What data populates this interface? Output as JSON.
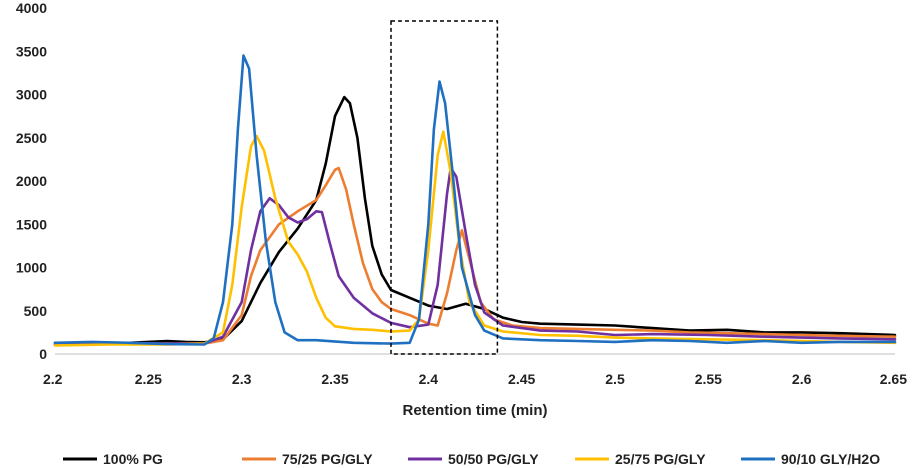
{
  "chart_data": {
    "type": "line",
    "title": "",
    "xlabel": "Retention time (min)",
    "ylabel": "",
    "xlim": [
      2.2,
      2.65
    ],
    "ylim": [
      0,
      4000
    ],
    "x_ticks": [
      "2.2",
      "2.25",
      "2.3",
      "2.35",
      "2.4",
      "2.45",
      "2.5",
      "2.55",
      "2.6",
      "2.65"
    ],
    "y_ticks": [
      "0",
      "500",
      "1000",
      "1500",
      "2000",
      "2500",
      "3000",
      "3500",
      "4000"
    ],
    "highlight_region": {
      "x": [
        2.38,
        2.437
      ],
      "y": [
        0,
        3850
      ]
    },
    "legend_position": "bottom",
    "series": [
      {
        "name": "100% PG",
        "color": "#000000",
        "points": [
          [
            2.2,
            130
          ],
          [
            2.22,
            120
          ],
          [
            2.24,
            130
          ],
          [
            2.26,
            150
          ],
          [
            2.27,
            140
          ],
          [
            2.28,
            135
          ],
          [
            2.29,
            170
          ],
          [
            2.3,
            380
          ],
          [
            2.31,
            820
          ],
          [
            2.32,
            1180
          ],
          [
            2.33,
            1450
          ],
          [
            2.34,
            1780
          ],
          [
            2.345,
            2200
          ],
          [
            2.35,
            2750
          ],
          [
            2.355,
            2970
          ],
          [
            2.358,
            2900
          ],
          [
            2.362,
            2500
          ],
          [
            2.366,
            1800
          ],
          [
            2.37,
            1250
          ],
          [
            2.375,
            920
          ],
          [
            2.38,
            740
          ],
          [
            2.39,
            650
          ],
          [
            2.4,
            560
          ],
          [
            2.41,
            520
          ],
          [
            2.42,
            580
          ],
          [
            2.43,
            520
          ],
          [
            2.44,
            420
          ],
          [
            2.45,
            370
          ],
          [
            2.46,
            350
          ],
          [
            2.48,
            340
          ],
          [
            2.5,
            330
          ],
          [
            2.52,
            300
          ],
          [
            2.54,
            270
          ],
          [
            2.56,
            280
          ],
          [
            2.58,
            250
          ],
          [
            2.6,
            250
          ],
          [
            2.62,
            240
          ],
          [
            2.65,
            220
          ]
        ]
      },
      {
        "name": "75/25 PG/GLY",
        "color": "#ED7D31",
        "points": [
          [
            2.2,
            110
          ],
          [
            2.23,
            120
          ],
          [
            2.26,
            120
          ],
          [
            2.28,
            120
          ],
          [
            2.29,
            160
          ],
          [
            2.3,
            450
          ],
          [
            2.305,
            900
          ],
          [
            2.31,
            1200
          ],
          [
            2.32,
            1500
          ],
          [
            2.33,
            1650
          ],
          [
            2.34,
            1780
          ],
          [
            2.345,
            1950
          ],
          [
            2.35,
            2130
          ],
          [
            2.352,
            2150
          ],
          [
            2.356,
            1900
          ],
          [
            2.36,
            1500
          ],
          [
            2.365,
            1050
          ],
          [
            2.37,
            750
          ],
          [
            2.375,
            600
          ],
          [
            2.38,
            520
          ],
          [
            2.39,
            450
          ],
          [
            2.4,
            350
          ],
          [
            2.405,
            330
          ],
          [
            2.41,
            700
          ],
          [
            2.415,
            1200
          ],
          [
            2.418,
            1430
          ],
          [
            2.422,
            1100
          ],
          [
            2.428,
            600
          ],
          [
            2.435,
            400
          ],
          [
            2.445,
            330
          ],
          [
            2.46,
            300
          ],
          [
            2.48,
            290
          ],
          [
            2.5,
            280
          ],
          [
            2.52,
            270
          ],
          [
            2.54,
            250
          ],
          [
            2.56,
            240
          ],
          [
            2.58,
            230
          ],
          [
            2.6,
            220
          ],
          [
            2.62,
            210
          ],
          [
            2.65,
            200
          ]
        ]
      },
      {
        "name": "50/50 PG/GLY",
        "color": "#7030A0",
        "points": [
          [
            2.2,
            110
          ],
          [
            2.23,
            130
          ],
          [
            2.26,
            120
          ],
          [
            2.28,
            120
          ],
          [
            2.29,
            200
          ],
          [
            2.3,
            600
          ],
          [
            2.305,
            1200
          ],
          [
            2.31,
            1650
          ],
          [
            2.315,
            1800
          ],
          [
            2.32,
            1720
          ],
          [
            2.325,
            1580
          ],
          [
            2.33,
            1520
          ],
          [
            2.335,
            1560
          ],
          [
            2.34,
            1650
          ],
          [
            2.343,
            1640
          ],
          [
            2.347,
            1300
          ],
          [
            2.352,
            900
          ],
          [
            2.36,
            650
          ],
          [
            2.37,
            470
          ],
          [
            2.38,
            360
          ],
          [
            2.39,
            310
          ],
          [
            2.4,
            340
          ],
          [
            2.405,
            800
          ],
          [
            2.41,
            1850
          ],
          [
            2.412,
            2150
          ],
          [
            2.415,
            2050
          ],
          [
            2.42,
            1400
          ],
          [
            2.425,
            800
          ],
          [
            2.43,
            480
          ],
          [
            2.44,
            330
          ],
          [
            2.46,
            270
          ],
          [
            2.48,
            260
          ],
          [
            2.5,
            220
          ],
          [
            2.52,
            230
          ],
          [
            2.55,
            220
          ],
          [
            2.58,
            200
          ],
          [
            2.6,
            190
          ],
          [
            2.62,
            180
          ],
          [
            2.65,
            170
          ]
        ]
      },
      {
        "name": "25/75 PG/GLY",
        "color": "#FFC000",
        "points": [
          [
            2.2,
            100
          ],
          [
            2.23,
            110
          ],
          [
            2.26,
            110
          ],
          [
            2.28,
            120
          ],
          [
            2.29,
            250
          ],
          [
            2.295,
            800
          ],
          [
            2.3,
            1700
          ],
          [
            2.305,
            2400
          ],
          [
            2.308,
            2520
          ],
          [
            2.312,
            2350
          ],
          [
            2.318,
            1800
          ],
          [
            2.325,
            1300
          ],
          [
            2.33,
            1150
          ],
          [
            2.335,
            950
          ],
          [
            2.34,
            650
          ],
          [
            2.345,
            420
          ],
          [
            2.35,
            320
          ],
          [
            2.36,
            290
          ],
          [
            2.37,
            280
          ],
          [
            2.38,
            260
          ],
          [
            2.39,
            270
          ],
          [
            2.395,
            400
          ],
          [
            2.4,
            1200
          ],
          [
            2.405,
            2300
          ],
          [
            2.408,
            2570
          ],
          [
            2.412,
            2100
          ],
          [
            2.417,
            1200
          ],
          [
            2.422,
            600
          ],
          [
            2.43,
            330
          ],
          [
            2.44,
            260
          ],
          [
            2.46,
            220
          ],
          [
            2.48,
            210
          ],
          [
            2.5,
            190
          ],
          [
            2.52,
            180
          ],
          [
            2.55,
            170
          ],
          [
            2.58,
            160
          ],
          [
            2.6,
            150
          ],
          [
            2.62,
            140
          ],
          [
            2.65,
            130
          ]
        ]
      },
      {
        "name": "90/10 GLY/H2O",
        "color": "#1F70C1",
        "points": [
          [
            2.2,
            130
          ],
          [
            2.22,
            140
          ],
          [
            2.24,
            130
          ],
          [
            2.26,
            115
          ],
          [
            2.28,
            110
          ],
          [
            2.285,
            180
          ],
          [
            2.29,
            600
          ],
          [
            2.295,
            1500
          ],
          [
            2.298,
            2600
          ],
          [
            2.301,
            3450
          ],
          [
            2.304,
            3300
          ],
          [
            2.308,
            2300
          ],
          [
            2.313,
            1300
          ],
          [
            2.318,
            600
          ],
          [
            2.323,
            250
          ],
          [
            2.33,
            160
          ],
          [
            2.34,
            160
          ],
          [
            2.36,
            130
          ],
          [
            2.38,
            120
          ],
          [
            2.39,
            130
          ],
          [
            2.395,
            400
          ],
          [
            2.4,
            1500
          ],
          [
            2.403,
            2600
          ],
          [
            2.406,
            3150
          ],
          [
            2.409,
            2900
          ],
          [
            2.413,
            2100
          ],
          [
            2.418,
            1000
          ],
          [
            2.425,
            450
          ],
          [
            2.43,
            270
          ],
          [
            2.44,
            180
          ],
          [
            2.46,
            160
          ],
          [
            2.48,
            150
          ],
          [
            2.5,
            140
          ],
          [
            2.52,
            160
          ],
          [
            2.54,
            150
          ],
          [
            2.56,
            130
          ],
          [
            2.58,
            150
          ],
          [
            2.6,
            130
          ],
          [
            2.62,
            140
          ],
          [
            2.65,
            140
          ]
        ]
      }
    ]
  }
}
